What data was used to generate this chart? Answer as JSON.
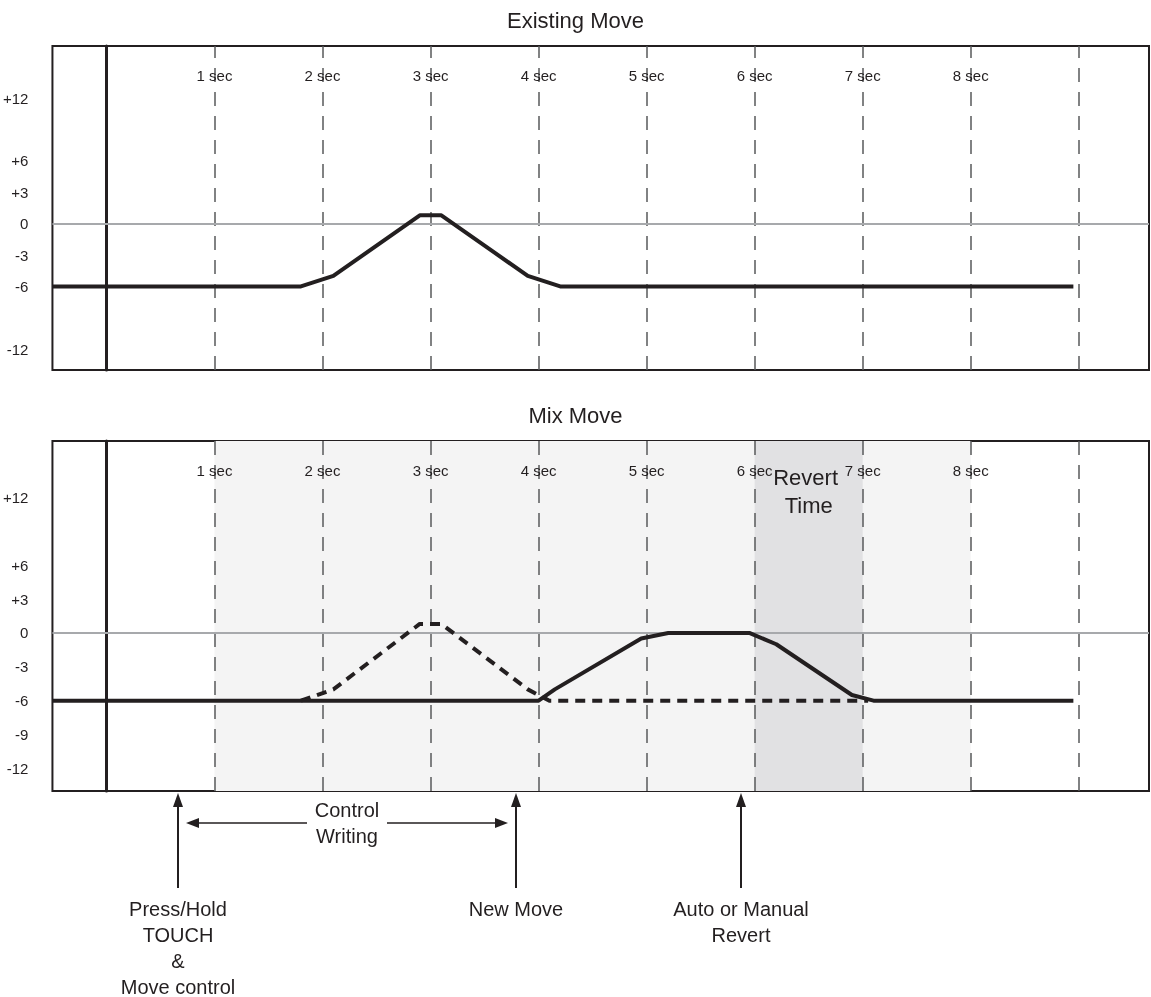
{
  "chart_data": [
    {
      "type": "line",
      "title": "Existing Move",
      "xlim": [
        -0.5,
        9.65
      ],
      "ylim": [
        -14,
        17
      ],
      "xticks": [
        {
          "value": 1,
          "label": "1 sec"
        },
        {
          "value": 2,
          "label": "2 sec"
        },
        {
          "value": 3,
          "label": "3 sec"
        },
        {
          "value": 4,
          "label": "4 sec"
        },
        {
          "value": 5,
          "label": "5 sec"
        },
        {
          "value": 6,
          "label": "6 sec"
        },
        {
          "value": 7,
          "label": "7 sec"
        },
        {
          "value": 8,
          "label": "8 sec"
        },
        {
          "value": 9,
          "label": null
        }
      ],
      "yticks": [
        -12,
        -6,
        -3,
        0,
        {
          "value": 3,
          "label": "+3"
        },
        {
          "value": 6,
          "label": "+6"
        },
        {
          "value": 12,
          "label": "+12"
        }
      ],
      "grid": "x",
      "marker": "none",
      "ref_lines": [
        {
          "axis": "y",
          "value": 0,
          "color": "#a7a9ac"
        }
      ],
      "series": [
        {
          "color": "#231f20",
          "line_style": "solid",
          "x": [
            -0.5,
            1.8,
            2.1,
            2.9,
            3.1,
            3.9,
            4.2,
            8.95
          ],
          "values": [
            -6,
            -6,
            -5,
            0.8,
            0.8,
            -5,
            -6,
            -6
          ]
        }
      ]
    },
    {
      "type": "line",
      "title": "Mix Move",
      "xlim": [
        -0.5,
        9.65
      ],
      "ylim": [
        -14,
        17
      ],
      "xticks": [
        {
          "value": 1,
          "label": "1 sec"
        },
        {
          "value": 2,
          "label": "2 sec"
        },
        {
          "value": 3,
          "label": "3 sec"
        },
        {
          "value": 4,
          "label": "4 sec"
        },
        {
          "value": 5,
          "label": "5 sec"
        },
        {
          "value": 6,
          "label": "6 sec"
        },
        {
          "value": 7,
          "label": "7 sec"
        },
        {
          "value": 8,
          "label": "8 sec"
        },
        {
          "value": 9,
          "label": null
        }
      ],
      "yticks": [
        -12,
        -9,
        -6,
        -3,
        0,
        {
          "value": 3,
          "label": "+3"
        },
        {
          "value": 6,
          "label": "+6"
        },
        {
          "value": 12,
          "label": "+12"
        }
      ],
      "grid": "x",
      "marker": "none",
      "ref_lines": [
        {
          "axis": "y",
          "value": 0,
          "color": "#a7a9ac"
        }
      ],
      "bands": [
        {
          "axis": "x",
          "from": 1,
          "to": 8,
          "color": "#f4f4f4"
        },
        {
          "axis": "x",
          "from": 6,
          "to": 7,
          "label": "Revert Time",
          "color": "#e1e1e3"
        }
      ],
      "series": [
        {
          "color": "#231f20",
          "line_style": "dashed",
          "x": [
            1.8,
            2.1,
            2.9,
            3.1,
            3.9,
            4.1,
            7.05
          ],
          "values": [
            -6,
            -5,
            0.8,
            0.8,
            -5,
            -6,
            -6
          ]
        },
        {
          "color": "#231f20",
          "line_style": "solid",
          "x": [
            -0.5,
            4,
            4.15,
            4.95,
            5.2,
            5.95,
            6.2,
            6.9,
            7.1,
            8.95
          ],
          "values": [
            -6,
            -6,
            -5,
            -0.5,
            0,
            0,
            -1,
            -5.5,
            -6,
            -6
          ]
        }
      ],
      "annotations": [
        "Press/Hold\nTOUCH\n&\nMove control",
        "Control\nWriting",
        "New Move",
        "Auto or Manual\nRevert"
      ]
    }
  ]
}
